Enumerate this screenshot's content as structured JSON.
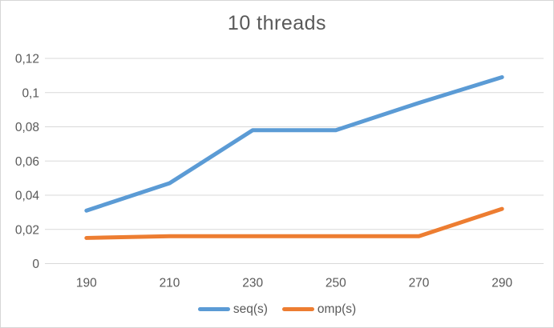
{
  "chart_data": {
    "type": "line",
    "title": "10 threads",
    "x_categories": [
      "190",
      "210",
      "230",
      "250",
      "270",
      "290"
    ],
    "series": [
      {
        "key": "seq",
        "name": "seq(s)",
        "color": "#5B9BD5",
        "values": [
          0.031,
          0.047,
          0.078,
          0.078,
          0.094,
          0.109
        ]
      },
      {
        "key": "omp",
        "name": "omp(s)",
        "color": "#ED7D31",
        "values": [
          0.015,
          0.016,
          0.016,
          0.016,
          0.016,
          0.032
        ]
      }
    ],
    "y_ticks": [
      {
        "value": 0,
        "label": "0"
      },
      {
        "value": 0.02,
        "label": "0,02"
      },
      {
        "value": 0.04,
        "label": "0,04"
      },
      {
        "value": 0.06,
        "label": "0,06"
      },
      {
        "value": 0.08,
        "label": "0,08"
      },
      {
        "value": 0.1,
        "label": "0,1"
      },
      {
        "value": 0.12,
        "label": "0,12"
      }
    ],
    "ylim": [
      0,
      0.12
    ],
    "xlabel": "",
    "ylabel": "",
    "grid": true,
    "legend_position": "bottom-center",
    "decimal_separator": ",",
    "text_color": "#595959",
    "gridline_color": "#D9D9D9",
    "background_color": "#FFFFFF"
  }
}
